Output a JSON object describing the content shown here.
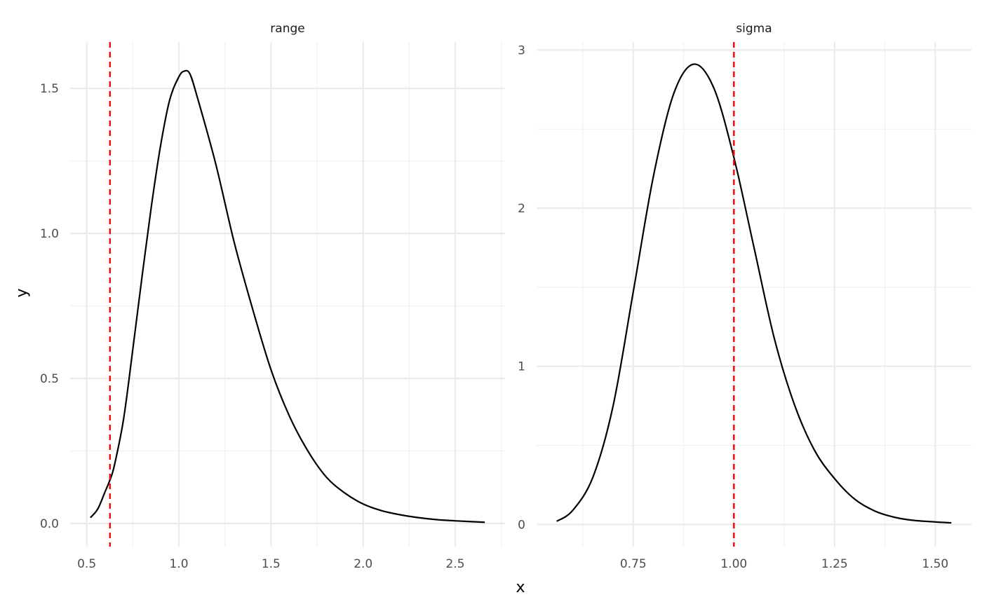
{
  "chart_data": [
    {
      "type": "line",
      "title": "range",
      "xlabel": "x",
      "ylabel": "y",
      "xlim": [
        0.41,
        2.77
      ],
      "ylim": [
        -0.08,
        1.66
      ],
      "xticks": [
        0.5,
        1.0,
        1.5,
        2.0,
        2.5
      ],
      "xtick_labels": [
        "0.5",
        "1.0",
        "1.5",
        "2.0",
        "2.5"
      ],
      "xminor": [
        0.75,
        1.25,
        1.75,
        2.25,
        2.75
      ],
      "yticks": [
        0.0,
        0.5,
        1.0,
        1.5
      ],
      "ytick_labels": [
        "0.0",
        "0.5",
        "1.0",
        "1.5"
      ],
      "yminor": [
        0.25,
        0.75,
        1.25
      ],
      "grid": true,
      "line_color": "#000000",
      "vline": {
        "x": 0.626,
        "color": "#ff0000",
        "style": "dashed"
      },
      "x": [
        0.52,
        0.56,
        0.6,
        0.626,
        0.65,
        0.7,
        0.75,
        0.8,
        0.85,
        0.9,
        0.95,
        1.0,
        1.03,
        1.06,
        1.1,
        1.2,
        1.3,
        1.4,
        1.5,
        1.6,
        1.7,
        1.8,
        1.9,
        2.0,
        2.1,
        2.2,
        2.3,
        2.4,
        2.5,
        2.66
      ],
      "y": [
        0.02,
        0.05,
        0.11,
        0.15,
        0.2,
        0.36,
        0.6,
        0.85,
        1.09,
        1.3,
        1.46,
        1.54,
        1.56,
        1.55,
        1.47,
        1.24,
        0.97,
        0.74,
        0.53,
        0.37,
        0.25,
        0.16,
        0.105,
        0.067,
        0.044,
        0.03,
        0.02,
        0.013,
        0.009,
        0.004
      ]
    },
    {
      "type": "line",
      "title": "sigma",
      "xlim": [
        0.51,
        1.59
      ],
      "ylim": [
        -0.14,
        3.05
      ],
      "xticks": [
        0.75,
        1.0,
        1.25,
        1.5
      ],
      "xtick_labels": [
        "0.75",
        "1.00",
        "1.25",
        "1.50"
      ],
      "xminor": [
        0.625,
        0.875,
        1.125,
        1.375
      ],
      "yticks": [
        0,
        1,
        2,
        3
      ],
      "ytick_labels": [
        "0",
        "1",
        "2",
        "3"
      ],
      "yminor": [
        0.5,
        1.5,
        2.5
      ],
      "grid": true,
      "line_color": "#000000",
      "vline": {
        "x": 1.0,
        "color": "#ff0000",
        "style": "dashed"
      },
      "x": [
        0.56,
        0.6,
        0.65,
        0.7,
        0.75,
        0.8,
        0.85,
        0.9,
        0.95,
        1.0,
        1.05,
        1.1,
        1.15,
        1.2,
        1.25,
        1.3,
        1.35,
        1.4,
        1.45,
        1.54
      ],
      "y": [
        0.02,
        0.09,
        0.3,
        0.75,
        1.47,
        2.2,
        2.72,
        2.91,
        2.76,
        2.32,
        1.75,
        1.18,
        0.76,
        0.47,
        0.29,
        0.16,
        0.085,
        0.045,
        0.025,
        0.01
      ]
    }
  ],
  "labels": {
    "x": "x",
    "y": "y"
  }
}
